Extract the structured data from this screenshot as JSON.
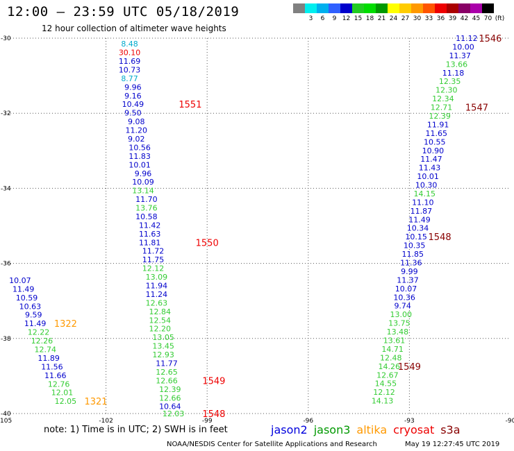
{
  "title": "12:00 – 23:59 UTC 05/18/2019",
  "subtitle": "12 hour collection of altimeter wave heights",
  "legend": {
    "unit": "(ft)",
    "bins": [
      {
        "label": "",
        "color": "#808080"
      },
      {
        "label": "3",
        "color": "#00eeee"
      },
      {
        "label": "6",
        "color": "#00b0ee"
      },
      {
        "label": "9",
        "color": "#3060ff"
      },
      {
        "label": "12",
        "color": "#0000cc"
      },
      {
        "label": "15",
        "color": "#22cc22"
      },
      {
        "label": "18",
        "color": "#00dd00"
      },
      {
        "label": "21",
        "color": "#009900"
      },
      {
        "label": "24",
        "color": "#ffff00"
      },
      {
        "label": "27",
        "color": "#ffcc00"
      },
      {
        "label": "30",
        "color": "#ff9900"
      },
      {
        "label": "33",
        "color": "#ff5500"
      },
      {
        "label": "36",
        "color": "#ee0000"
      },
      {
        "label": "39",
        "color": "#aa0000"
      },
      {
        "label": "42",
        "color": "#880066"
      },
      {
        "label": "45",
        "color": "#aa00aa"
      },
      {
        "label": "70",
        "color": "#000000"
      }
    ]
  },
  "note": "note: 1) Time is in UTC; 2) SWH is in feet",
  "satellites": [
    {
      "name": "jason2",
      "color": "#0000dd"
    },
    {
      "name": "jason3",
      "color": "#009900"
    },
    {
      "name": "altika",
      "color": "#ff9900"
    },
    {
      "name": "cryosat",
      "color": "#ee0000"
    },
    {
      "name": "s3a",
      "color": "#880000"
    }
  ],
  "footer": "NOAA/NESDIS Center for Satellite Applications and Research",
  "footer_time": "May 19 12:27:45 UTC 2019",
  "chart_data": {
    "type": "scatter",
    "xlim": [
      -105,
      -90
    ],
    "ylim": [
      -40,
      -30
    ],
    "x_ticks": [
      -105,
      -102,
      -99,
      -96,
      -93,
      -90
    ],
    "y_ticks": [
      -30,
      -32,
      -34,
      -36,
      -38,
      -40
    ],
    "grid": true,
    "labels": [
      {
        "x": -101.3,
        "y": -30.15,
        "text": "8.48",
        "color": "#00aacc"
      },
      {
        "x": -101.3,
        "y": -30.38,
        "text": "30.10",
        "color": "#ee0000"
      },
      {
        "x": -101.3,
        "y": -30.61,
        "text": "11.69",
        "color": "#0000cc"
      },
      {
        "x": -101.3,
        "y": -30.84,
        "text": "10.73",
        "color": "#0000cc"
      },
      {
        "x": -101.3,
        "y": -31.07,
        "text": "8.77",
        "color": "#00aacc"
      },
      {
        "x": -101.2,
        "y": -31.3,
        "text": "9.96",
        "color": "#0000cc"
      },
      {
        "x": -101.2,
        "y": -31.53,
        "text": "9.16",
        "color": "#0000cc"
      },
      {
        "x": -101.2,
        "y": -31.76,
        "text": "10.49",
        "color": "#0000cc"
      },
      {
        "x": -101.2,
        "y": -31.99,
        "text": "9.50",
        "color": "#0000cc"
      },
      {
        "x": -101.1,
        "y": -32.22,
        "text": "9.08",
        "color": "#0000cc"
      },
      {
        "x": -101.1,
        "y": -32.45,
        "text": "11.20",
        "color": "#0000cc"
      },
      {
        "x": -101.1,
        "y": -32.68,
        "text": "9.02",
        "color": "#0000cc"
      },
      {
        "x": -101.0,
        "y": -32.91,
        "text": "10.56",
        "color": "#0000cc"
      },
      {
        "x": -101.0,
        "y": -33.14,
        "text": "11.83",
        "color": "#0000cc"
      },
      {
        "x": -101.0,
        "y": -33.37,
        "text": "10.01",
        "color": "#0000cc"
      },
      {
        "x": -100.9,
        "y": -33.6,
        "text": "9.96",
        "color": "#0000cc"
      },
      {
        "x": -100.9,
        "y": -33.83,
        "text": "10.09",
        "color": "#0000cc"
      },
      {
        "x": -100.9,
        "y": -34.06,
        "text": "13.14",
        "color": "#33cc33"
      },
      {
        "x": -100.8,
        "y": -34.29,
        "text": "11.70",
        "color": "#0000cc"
      },
      {
        "x": -100.8,
        "y": -34.52,
        "text": "13.76",
        "color": "#33cc33"
      },
      {
        "x": -100.8,
        "y": -34.75,
        "text": "10.58",
        "color": "#0000cc"
      },
      {
        "x": -100.7,
        "y": -34.98,
        "text": "11.42",
        "color": "#0000cc"
      },
      {
        "x": -100.7,
        "y": -35.21,
        "text": "11.63",
        "color": "#0000cc"
      },
      {
        "x": -100.7,
        "y": -35.44,
        "text": "11.81",
        "color": "#0000cc"
      },
      {
        "x": -100.6,
        "y": -35.67,
        "text": "11.72",
        "color": "#0000cc"
      },
      {
        "x": -100.6,
        "y": -35.9,
        "text": "11.75",
        "color": "#0000cc"
      },
      {
        "x": -100.6,
        "y": -36.13,
        "text": "12.12",
        "color": "#33cc33"
      },
      {
        "x": -100.5,
        "y": -36.36,
        "text": "13.09",
        "color": "#33cc33"
      },
      {
        "x": -100.5,
        "y": -36.59,
        "text": "11.94",
        "color": "#0000cc"
      },
      {
        "x": -100.5,
        "y": -36.82,
        "text": "11.24",
        "color": "#0000cc"
      },
      {
        "x": -100.5,
        "y": -37.05,
        "text": "12.63",
        "color": "#33cc33"
      },
      {
        "x": -100.4,
        "y": -37.28,
        "text": "12.84",
        "color": "#33cc33"
      },
      {
        "x": -100.4,
        "y": -37.51,
        "text": "12.54",
        "color": "#33cc33"
      },
      {
        "x": -100.4,
        "y": -37.74,
        "text": "12.20",
        "color": "#33cc33"
      },
      {
        "x": -100.3,
        "y": -37.97,
        "text": "13.05",
        "color": "#33cc33"
      },
      {
        "x": -100.3,
        "y": -38.2,
        "text": "13.45",
        "color": "#33cc33"
      },
      {
        "x": -100.3,
        "y": -38.43,
        "text": "12.93",
        "color": "#33cc33"
      },
      {
        "x": -100.2,
        "y": -38.66,
        "text": "11.77",
        "color": "#0000cc"
      },
      {
        "x": -100.2,
        "y": -38.89,
        "text": "12.65",
        "color": "#33cc33"
      },
      {
        "x": -100.2,
        "y": -39.12,
        "text": "12.66",
        "color": "#33cc33"
      },
      {
        "x": -100.1,
        "y": -39.35,
        "text": "12.39",
        "color": "#33cc33"
      },
      {
        "x": -100.1,
        "y": -39.58,
        "text": "12.66",
        "color": "#33cc33"
      },
      {
        "x": -100.1,
        "y": -39.81,
        "text": "10.64",
        "color": "#0000cc"
      },
      {
        "x": -100.0,
        "y": -40.0,
        "text": "12.03",
        "color": "#33cc33"
      },
      {
        "x": -104.55,
        "y": -36.45,
        "text": "10.07",
        "color": "#0000cc"
      },
      {
        "x": -104.45,
        "y": -36.68,
        "text": "11.49",
        "color": "#0000cc"
      },
      {
        "x": -104.35,
        "y": -36.91,
        "text": "10.59",
        "color": "#0000cc"
      },
      {
        "x": -104.25,
        "y": -37.14,
        "text": "10.63",
        "color": "#0000cc"
      },
      {
        "x": -104.15,
        "y": -37.37,
        "text": "9.59",
        "color": "#0000cc"
      },
      {
        "x": -104.1,
        "y": -37.6,
        "text": "11.49",
        "color": "#0000cc"
      },
      {
        "x": -104.0,
        "y": -37.83,
        "text": "12.22",
        "color": "#33cc33"
      },
      {
        "x": -103.9,
        "y": -38.06,
        "text": "12.26",
        "color": "#33cc33"
      },
      {
        "x": -103.8,
        "y": -38.29,
        "text": "12.74",
        "color": "#33cc33"
      },
      {
        "x": -103.7,
        "y": -38.52,
        "text": "11.89",
        "color": "#0000cc"
      },
      {
        "x": -103.6,
        "y": -38.75,
        "text": "11.56",
        "color": "#0000cc"
      },
      {
        "x": -103.5,
        "y": -38.98,
        "text": "11.66",
        "color": "#0000cc"
      },
      {
        "x": -103.4,
        "y": -39.21,
        "text": "12.76",
        "color": "#33cc33"
      },
      {
        "x": -103.3,
        "y": -39.44,
        "text": "12.01",
        "color": "#33cc33"
      },
      {
        "x": -103.2,
        "y": -39.67,
        "text": "12.05",
        "color": "#33cc33"
      },
      {
        "x": -91.3,
        "y": -30.0,
        "text": "11.12",
        "color": "#0000cc"
      },
      {
        "x": -91.4,
        "y": -30.23,
        "text": "10.00",
        "color": "#0000cc"
      },
      {
        "x": -91.5,
        "y": -30.46,
        "text": "11.37",
        "color": "#0000cc"
      },
      {
        "x": -91.6,
        "y": -30.69,
        "text": "13.66",
        "color": "#33cc33"
      },
      {
        "x": -91.7,
        "y": -30.92,
        "text": "11.18",
        "color": "#0000cc"
      },
      {
        "x": -91.8,
        "y": -31.15,
        "text": "12.35",
        "color": "#33cc33"
      },
      {
        "x": -91.9,
        "y": -31.38,
        "text": "12.30",
        "color": "#33cc33"
      },
      {
        "x": -92.0,
        "y": -31.61,
        "text": "12.34",
        "color": "#33cc33"
      },
      {
        "x": -92.05,
        "y": -31.84,
        "text": "12.71",
        "color": "#33cc33"
      },
      {
        "x": -92.1,
        "y": -32.07,
        "text": "12.39",
        "color": "#33cc33"
      },
      {
        "x": -92.15,
        "y": -32.3,
        "text": "11.91",
        "color": "#0000cc"
      },
      {
        "x": -92.2,
        "y": -32.53,
        "text": "11.65",
        "color": "#0000cc"
      },
      {
        "x": -92.25,
        "y": -32.76,
        "text": "10.55",
        "color": "#0000cc"
      },
      {
        "x": -92.3,
        "y": -32.99,
        "text": "10.90",
        "color": "#0000cc"
      },
      {
        "x": -92.35,
        "y": -33.22,
        "text": "11.47",
        "color": "#0000cc"
      },
      {
        "x": -92.4,
        "y": -33.45,
        "text": "11.43",
        "color": "#0000cc"
      },
      {
        "x": -92.45,
        "y": -33.68,
        "text": "10.01",
        "color": "#0000cc"
      },
      {
        "x": -92.5,
        "y": -33.91,
        "text": "10.30",
        "color": "#0000cc"
      },
      {
        "x": -92.55,
        "y": -34.14,
        "text": "14.15",
        "color": "#33cc33"
      },
      {
        "x": -92.6,
        "y": -34.37,
        "text": "11.10",
        "color": "#0000cc"
      },
      {
        "x": -92.65,
        "y": -34.6,
        "text": "11.87",
        "color": "#0000cc"
      },
      {
        "x": -92.7,
        "y": -34.83,
        "text": "11.49",
        "color": "#0000cc"
      },
      {
        "x": -92.75,
        "y": -35.06,
        "text": "10.34",
        "color": "#0000cc"
      },
      {
        "x": -92.8,
        "y": -35.29,
        "text": "10.15",
        "color": "#0000cc"
      },
      {
        "x": -92.85,
        "y": -35.52,
        "text": "10.35",
        "color": "#0000cc"
      },
      {
        "x": -92.9,
        "y": -35.75,
        "text": "11.85",
        "color": "#0000cc"
      },
      {
        "x": -92.95,
        "y": -35.98,
        "text": "11.36",
        "color": "#0000cc"
      },
      {
        "x": -93.0,
        "y": -36.21,
        "text": "9.99",
        "color": "#0000cc"
      },
      {
        "x": -93.05,
        "y": -36.44,
        "text": "11.37",
        "color": "#0000cc"
      },
      {
        "x": -93.1,
        "y": -36.67,
        "text": "10.07",
        "color": "#0000cc"
      },
      {
        "x": -93.15,
        "y": -36.9,
        "text": "10.36",
        "color": "#0000cc"
      },
      {
        "x": -93.2,
        "y": -37.13,
        "text": "9.74",
        "color": "#0000cc"
      },
      {
        "x": -93.25,
        "y": -37.36,
        "text": "13.00",
        "color": "#33cc33"
      },
      {
        "x": -93.3,
        "y": -37.59,
        "text": "13.75",
        "color": "#33cc33"
      },
      {
        "x": -93.35,
        "y": -37.82,
        "text": "13.48",
        "color": "#33cc33"
      },
      {
        "x": -93.45,
        "y": -38.05,
        "text": "13.61",
        "color": "#33cc33"
      },
      {
        "x": -93.5,
        "y": -38.28,
        "text": "14.71",
        "color": "#33cc33"
      },
      {
        "x": -93.55,
        "y": -38.51,
        "text": "12.48",
        "color": "#33cc33"
      },
      {
        "x": -93.6,
        "y": -38.74,
        "text": "14.26",
        "color": "#33cc33"
      },
      {
        "x": -93.65,
        "y": -38.97,
        "text": "12.67",
        "color": "#33cc33"
      },
      {
        "x": -93.7,
        "y": -39.2,
        "text": "14.55",
        "color": "#33cc33"
      },
      {
        "x": -93.75,
        "y": -39.43,
        "text": "12.12",
        "color": "#33cc33"
      },
      {
        "x": -93.8,
        "y": -39.66,
        "text": "14.13",
        "color": "#33cc33"
      }
    ],
    "pass_labels": [
      {
        "x": -99.5,
        "y": -31.76,
        "text": "1551",
        "color": "#ee0000"
      },
      {
        "x": -99.0,
        "y": -35.44,
        "text": "1550",
        "color": "#ee0000"
      },
      {
        "x": -98.8,
        "y": -39.12,
        "text": "1549",
        "color": "#ee0000"
      },
      {
        "x": -98.8,
        "y": -40.0,
        "text": "1548",
        "color": "#ee0000"
      },
      {
        "x": -103.2,
        "y": -37.6,
        "text": "1322",
        "color": "#ff9900"
      },
      {
        "x": -102.3,
        "y": -39.67,
        "text": "1321",
        "color": "#ff9900"
      },
      {
        "x": -90.6,
        "y": -30.0,
        "text": "1546",
        "color": "#880000"
      },
      {
        "x": -91.0,
        "y": -31.84,
        "text": "1547",
        "color": "#880000"
      },
      {
        "x": -92.1,
        "y": -35.29,
        "text": "1548",
        "color": "#880000"
      },
      {
        "x": -93.0,
        "y": -38.74,
        "text": "1549",
        "color": "#880000"
      }
    ]
  }
}
